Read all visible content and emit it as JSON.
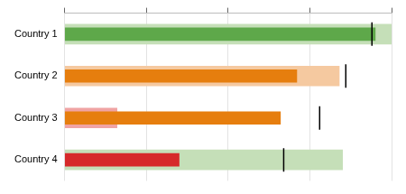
{
  "chart_data": {
    "type": "bar",
    "orientation": "horizontal",
    "categories": [
      "Country 1",
      "Country 2",
      "Country 3",
      "Country 4"
    ],
    "series": [
      {
        "type": "bar",
        "colors": [
          "#c5dfb8",
          "#f5c9a0",
          "#f0a3a3",
          "#c5dfb8"
        ],
        "values": [
          100,
          84,
          16,
          85
        ]
      },
      {
        "type": "bar",
        "colors": [
          "#5ea84a",
          "#e67e0e",
          "#e67e0e",
          "#d62a2a"
        ],
        "values": [
          95,
          71,
          66,
          35
        ]
      },
      {
        "type": "scatter",
        "marker": "line",
        "color": "#000000",
        "values": [
          94,
          86,
          78,
          67
        ]
      }
    ],
    "xlim": [
      0,
      100
    ],
    "xticks": [
      0,
      25,
      50,
      75,
      100
    ],
    "grid": true,
    "tick_labels": "y"
  }
}
